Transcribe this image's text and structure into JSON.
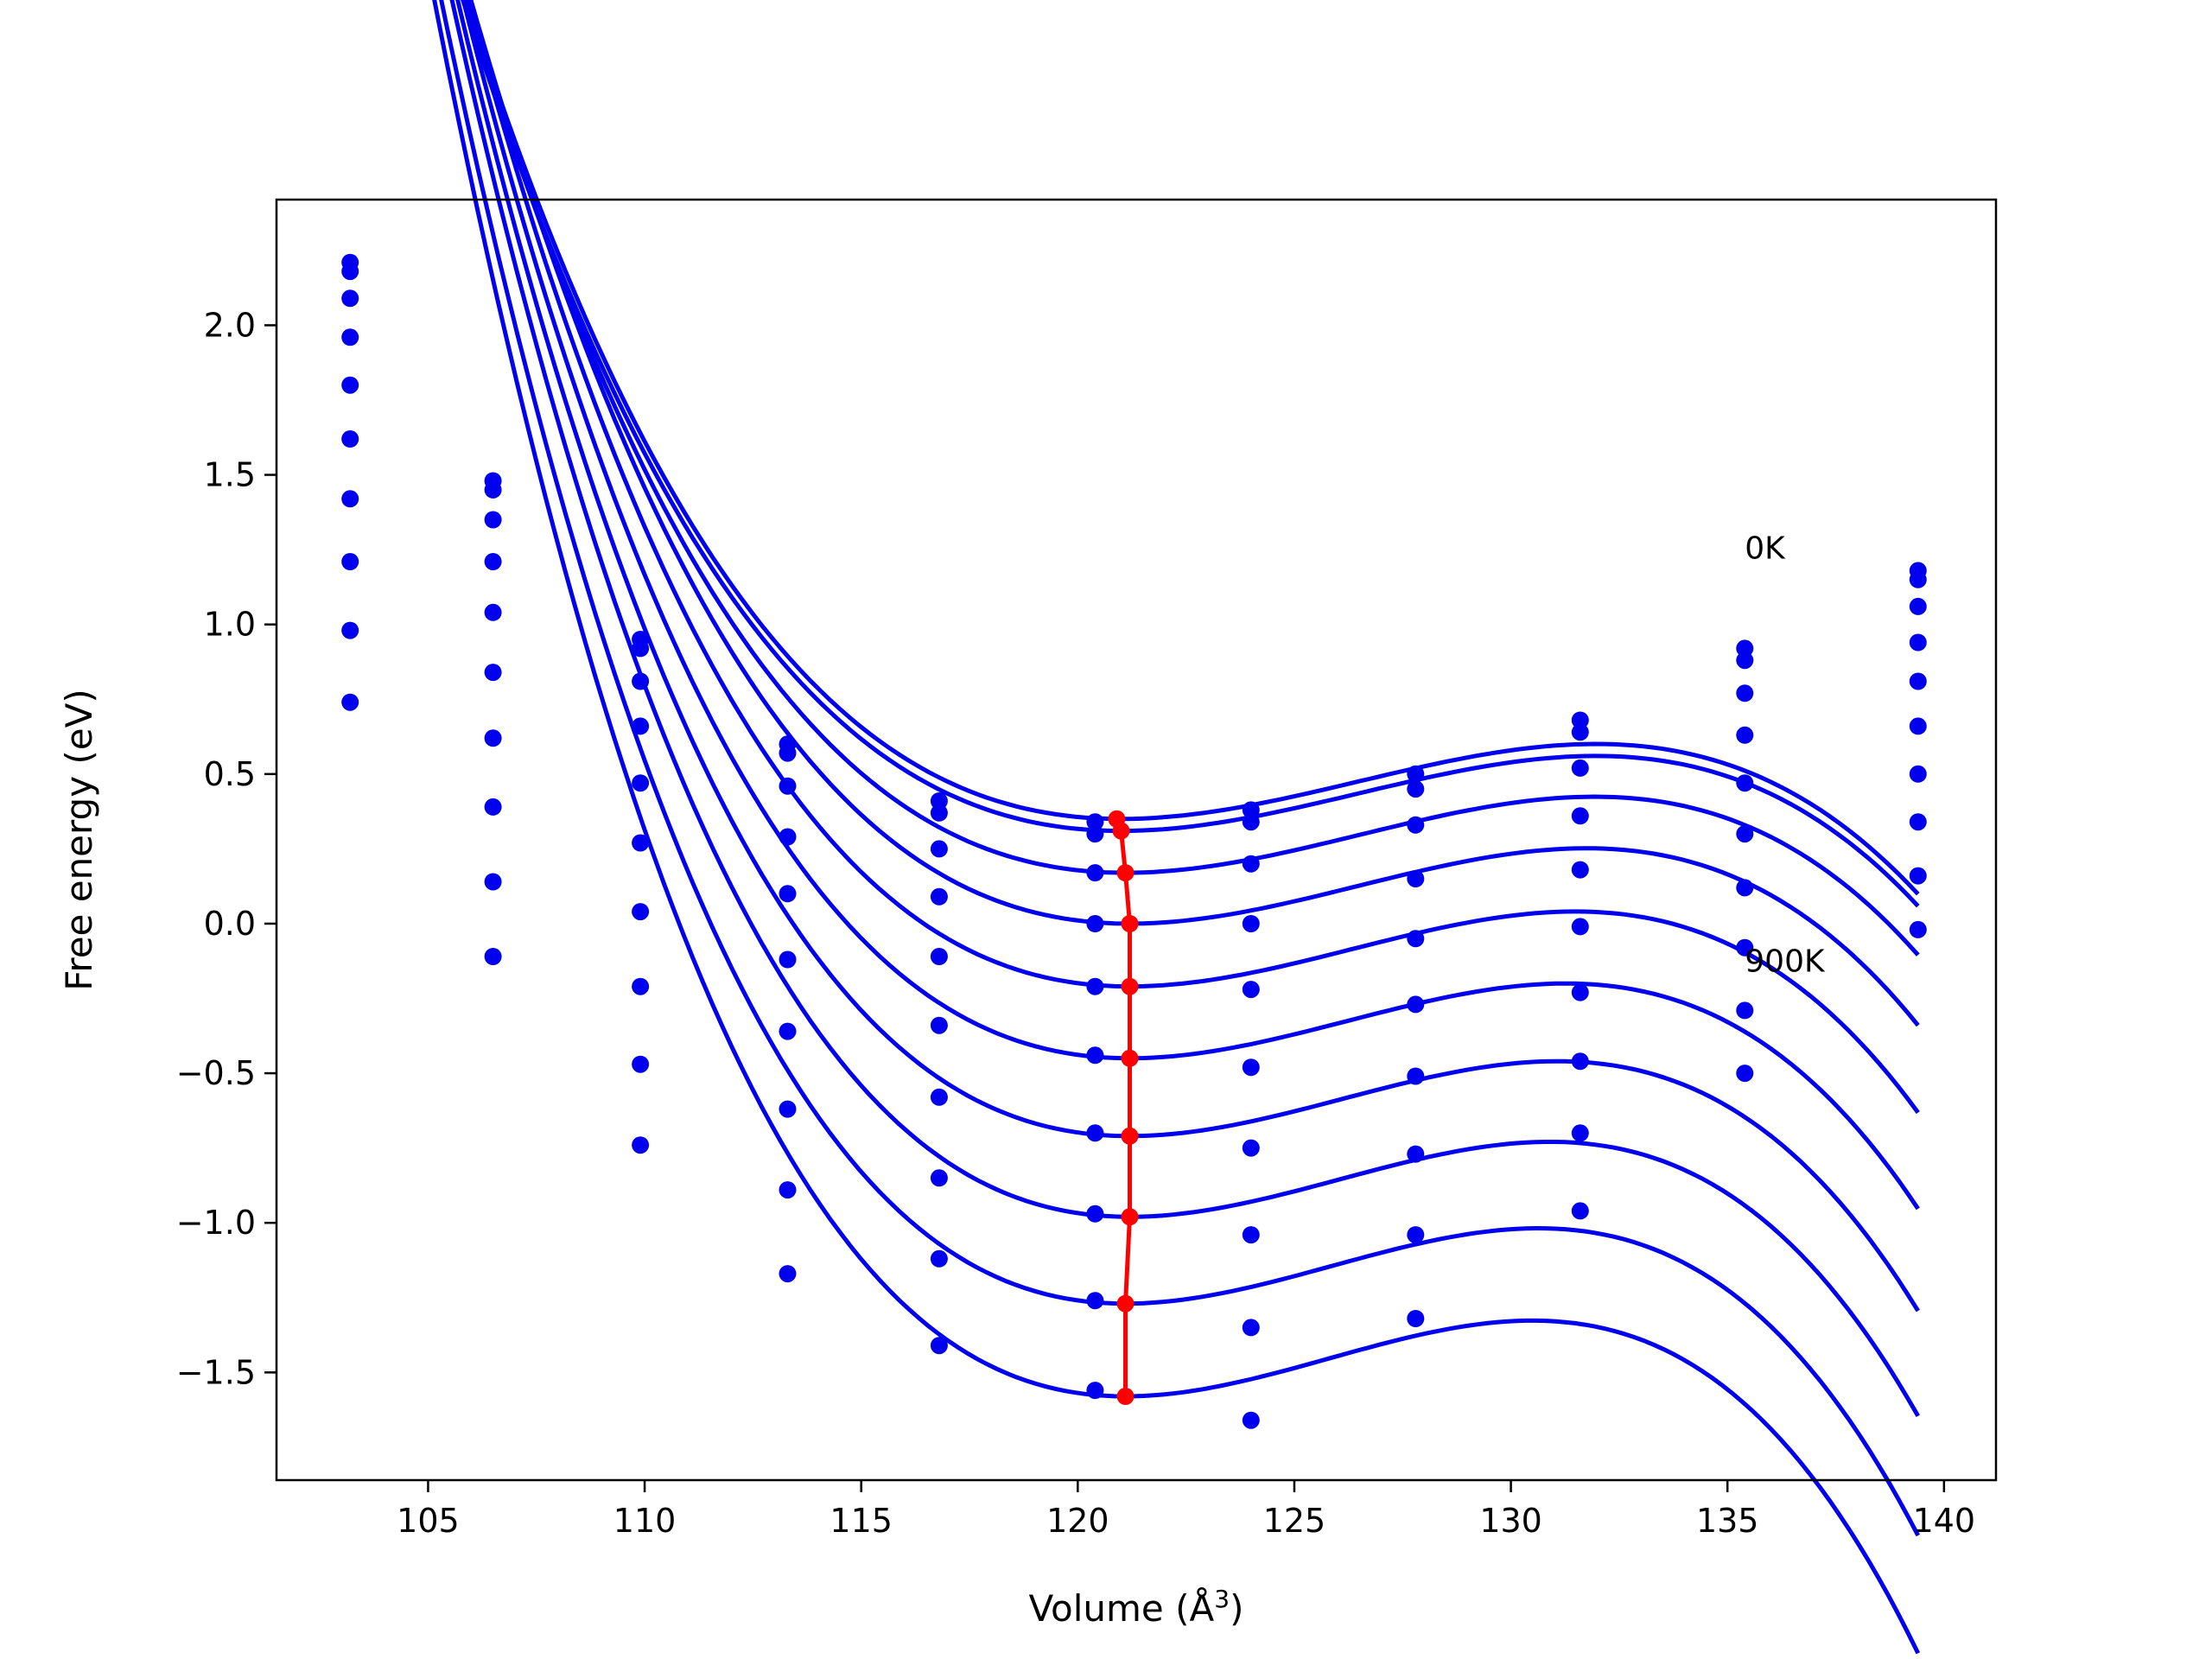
{
  "chart_data": {
    "type": "line",
    "xlabel": "Volume (Å",
    "xlabel_sup": "3",
    "xlabel_end": ")",
    "ylabel": "Free energy (eV)",
    "xlim": [
      101.5,
      141.2
    ],
    "ylim": [
      -1.86,
      2.42
    ],
    "xticks": [
      105,
      110,
      115,
      120,
      125,
      130,
      135,
      140
    ],
    "yticks": [
      -1.5,
      -1.0,
      -0.5,
      0.0,
      0.5,
      1.0,
      1.5,
      2.0
    ],
    "yticklabels": [
      "−1.5",
      "−1.0",
      "−0.5",
      "0.0",
      "0.5",
      "1.0",
      "1.5",
      "2.0"
    ],
    "grid": false,
    "x": [
      103.2,
      106.5,
      109.9,
      113.3,
      116.8,
      120.4,
      124.0,
      127.8,
      131.6,
      135.4,
      139.4
    ],
    "series": [
      {
        "values": [
          2.21,
          1.48,
          0.95,
          0.6,
          0.41,
          0.34,
          0.38,
          0.5,
          0.68,
          0.92,
          1.18
        ],
        "fit": {
          "vmin": 121.0,
          "emin": 0.35,
          "a": 0.00625,
          "b": 0.00038
        }
      },
      {
        "values": [
          2.18,
          1.45,
          0.92,
          0.57,
          0.37,
          0.3,
          0.34,
          0.45,
          0.64,
          0.88,
          1.15
        ],
        "fit": {
          "vmin": 121.0,
          "emin": 0.31,
          "a": 0.00625,
          "b": 0.00038
        }
      },
      {
        "values": [
          2.09,
          1.35,
          0.81,
          0.46,
          0.25,
          0.17,
          0.2,
          0.33,
          0.52,
          0.77,
          1.06
        ],
        "fit": {
          "vmin": 121.1,
          "emin": 0.17,
          "a": 0.0065,
          "b": 0.0004
        }
      },
      {
        "values": [
          1.96,
          1.21,
          0.66,
          0.29,
          0.09,
          0.0,
          0.0,
          0.15,
          0.36,
          0.63,
          0.94
        ],
        "fit": {
          "vmin": 121.2,
          "emin": 0.0,
          "a": 0.0068,
          "b": 0.00043
        }
      },
      {
        "values": [
          1.8,
          1.04,
          0.47,
          0.1,
          -0.11,
          -0.21,
          -0.22,
          -0.05,
          0.18,
          0.47,
          0.81
        ],
        "fit": {
          "vmin": 121.2,
          "emin": -0.21,
          "a": 0.0071,
          "b": 0.00046
        }
      },
      {
        "values": [
          1.62,
          0.84,
          0.27,
          -0.12,
          -0.34,
          -0.44,
          -0.48,
          -0.27,
          -0.01,
          0.3,
          0.66
        ],
        "fit": {
          "vmin": 121.2,
          "emin": -0.45,
          "a": 0.0074,
          "b": 0.00049
        }
      },
      {
        "values": [
          1.42,
          0.62,
          0.04,
          -0.36,
          -0.58,
          -0.7,
          -0.75,
          -0.51,
          -0.23,
          0.12,
          0.5
        ],
        "fit": {
          "vmin": 121.2,
          "emin": -0.71,
          "a": 0.0077,
          "b": 0.00052
        }
      },
      {
        "values": [
          1.21,
          0.39,
          -0.21,
          -0.62,
          -0.85,
          -0.97,
          -1.04,
          -0.77,
          -0.46,
          -0.08,
          0.34
        ],
        "fit": {
          "vmin": 121.2,
          "emin": -0.98,
          "a": 0.008,
          "b": 0.00055
        }
      },
      {
        "values": [
          0.98,
          0.14,
          -0.47,
          -0.89,
          -1.12,
          -1.26,
          -1.35,
          -1.04,
          -0.7,
          -0.29,
          0.16
        ],
        "fit": {
          "vmin": 121.1,
          "emin": -1.27,
          "a": 0.0083,
          "b": 0.00058
        }
      },
      {
        "values": [
          0.74,
          -0.11,
          -0.74,
          -1.17,
          -1.41,
          -1.56,
          -1.66,
          -1.32,
          -0.96,
          -0.5,
          -0.02
        ],
        "fit": {
          "vmin": 121.1,
          "emin": -1.58,
          "a": 0.0086,
          "b": 0.00061
        }
      }
    ],
    "minimum_path": {
      "x": [
        120.9,
        121.0,
        121.1,
        121.2,
        121.2,
        121.2,
        121.2,
        121.2,
        121.1,
        121.1
      ],
      "y": [
        0.35,
        0.31,
        0.17,
        0.0,
        -0.21,
        -0.45,
        -0.71,
        -0.98,
        -1.27,
        -1.58
      ]
    },
    "annotations": [
      {
        "text": "0K",
        "x": 135.4,
        "y": 1.22
      },
      {
        "text": "900K",
        "x": 135.4,
        "y": -0.16
      }
    ],
    "colors": {
      "curve": "#0000ee",
      "points": "#0000ee",
      "minimum_path": "#ff0000",
      "frame": "#000000"
    }
  }
}
